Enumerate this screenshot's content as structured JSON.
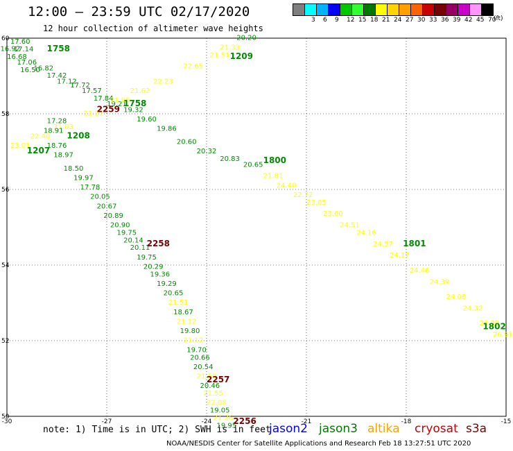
{
  "title": "12:00 – 23:59 UTC 02/17/2020",
  "subtitle": "12 hour collection of altimeter wave heights",
  "legend": {
    "unit": "(ft)",
    "bins": [
      {
        "label": "",
        "color": "#7f7f7f"
      },
      {
        "label": "3",
        "color": "#00ffff"
      },
      {
        "label": "6",
        "color": "#00b4ff"
      },
      {
        "label": "9",
        "color": "#0000ff"
      },
      {
        "label": "12",
        "color": "#00c800"
      },
      {
        "label": "15",
        "color": "#32ff32"
      },
      {
        "label": "18",
        "color": "#007800"
      },
      {
        "label": "21",
        "color": "#ffff00"
      },
      {
        "label": "24",
        "color": "#ffd400"
      },
      {
        "label": "27",
        "color": "#ffa000"
      },
      {
        "label": "30",
        "color": "#ff6400"
      },
      {
        "label": "33",
        "color": "#c80000"
      },
      {
        "label": "36",
        "color": "#780000"
      },
      {
        "label": "39",
        "color": "#960064"
      },
      {
        "label": "42",
        "color": "#c800c8"
      },
      {
        "label": "45",
        "color": "#ff96ff"
      },
      {
        "label": "70",
        "color": "#000000"
      }
    ]
  },
  "axes": {
    "lon_ticks": [
      "-30",
      "-27",
      "-24",
      "-21",
      "-18",
      "-15"
    ],
    "lat_ticks": [
      "50",
      "52",
      "54",
      "56",
      "58",
      "60"
    ]
  },
  "colors": {
    "jason2": "#0000ff",
    "jason3": "#007800",
    "altika": "#ffa000",
    "cryosat": "#c80000",
    "s3a": "#780000",
    "swh_green": "#008c00",
    "swh_yellow": "#ffff00"
  },
  "note": "note: 1) Time is in UTC; 2) SWH is in feet",
  "satellites": [
    "jason2",
    "jason3",
    "altika",
    "cryosat",
    "s3a"
  ],
  "credit": "NOAA/NESDIS Center for Satellite Applications and Research   Feb 18 13:27:51 UTC 2020",
  "tracks": [
    {
      "id": "pass-1758",
      "time": "1758",
      "time_pos": [
        -28.6,
        59.65
      ],
      "points": [
        {
          "lon": -29.6,
          "lat": 59.85,
          "v": "17.60"
        },
        {
          "lon": -29.9,
          "lat": 59.66,
          "v": "16.92"
        },
        {
          "lon": -29.5,
          "lat": 59.65,
          "v": "17.14"
        },
        {
          "lon": -29.7,
          "lat": 59.45,
          "v": "16.68"
        },
        {
          "lon": -29.4,
          "lat": 59.3,
          "v": "17.06"
        },
        {
          "lon": -29.3,
          "lat": 59.1,
          "v": "16.50"
        },
        {
          "lon": -28.9,
          "lat": 59.15,
          "v": "16.82"
        },
        {
          "lon": -28.5,
          "lat": 58.95,
          "v": "17.42"
        },
        {
          "lon": -28.2,
          "lat": 58.8,
          "v": "17.12"
        },
        {
          "lon": -27.8,
          "lat": 58.7,
          "v": "17.72"
        },
        {
          "lon": -27.45,
          "lat": 58.55,
          "v": "17.57"
        },
        {
          "lon": -27.1,
          "lat": 58.35,
          "v": "17.84"
        },
        {
          "lon": -26.7,
          "lat": 58.2,
          "v": "19.21"
        },
        {
          "lon": -26.2,
          "lat": 58.05,
          "v": "19.32"
        },
        {
          "lon": -25.8,
          "lat": 57.8,
          "v": "19.60"
        },
        {
          "lon": -25.2,
          "lat": 57.55,
          "v": "19.86"
        },
        {
          "lon": -24.6,
          "lat": 57.2,
          "v": "20.60"
        },
        {
          "lon": -24.0,
          "lat": 56.95,
          "v": "20.32"
        },
        {
          "lon": -23.3,
          "lat": 56.75,
          "v": "20.83"
        },
        {
          "lon": -22.6,
          "lat": 56.6,
          "v": "20.65"
        },
        {
          "lon": -22.0,
          "lat": 56.3,
          "v": "21.81"
        },
        {
          "lon": -21.6,
          "lat": 56.05,
          "v": "24.40"
        },
        {
          "lon": -21.1,
          "lat": 55.8,
          "v": "22.72"
        },
        {
          "lon": -20.7,
          "lat": 55.6,
          "v": "23.05"
        },
        {
          "lon": -20.2,
          "lat": 55.3,
          "v": "23.60"
        },
        {
          "lon": -19.7,
          "lat": 55.0,
          "v": "24.51"
        },
        {
          "lon": -19.2,
          "lat": 54.8,
          "v": "24.16"
        },
        {
          "lon": -18.7,
          "lat": 54.5,
          "v": "24.57"
        },
        {
          "lon": -18.2,
          "lat": 54.2,
          "v": "24.17"
        },
        {
          "lon": -17.6,
          "lat": 53.8,
          "v": "24.46"
        },
        {
          "lon": -17.0,
          "lat": 53.5,
          "v": "24.39"
        },
        {
          "lon": -16.5,
          "lat": 53.1,
          "v": "24.08"
        },
        {
          "lon": -16.0,
          "lat": 52.8,
          "v": "24.32"
        },
        {
          "lon": -15.5,
          "lat": 52.4,
          "v": "26.29"
        },
        {
          "lon": -15.1,
          "lat": 52.1,
          "v": "26.91"
        }
      ]
    },
    {
      "id": "pass-1209",
      "time": "1209",
      "time_pos": [
        -23.3,
        59.45
      ],
      "points": [
        {
          "lon": -22.8,
          "lat": 59.95,
          "v": "20.20"
        },
        {
          "lon": -23.3,
          "lat": 59.7,
          "v": "21.33"
        },
        {
          "lon": -23.6,
          "lat": 59.5,
          "v": "21.51"
        },
        {
          "lon": -24.4,
          "lat": 59.2,
          "v": "22.65"
        },
        {
          "lon": -25.3,
          "lat": 58.8,
          "v": "22.23"
        },
        {
          "lon": -26.0,
          "lat": 58.55,
          "v": "21.62"
        },
        {
          "lon": -26.6,
          "lat": 58.3,
          "v": "21.98"
        },
        {
          "lon": -27.4,
          "lat": 57.95,
          "v": "21.27"
        },
        {
          "lon": -28.3,
          "lat": 57.6,
          "v": "21.03"
        },
        {
          "lon": -29.0,
          "lat": 57.35,
          "v": "22.40"
        },
        {
          "lon": -29.6,
          "lat": 57.1,
          "v": "23.01"
        }
      ]
    },
    {
      "id": "pass-2259",
      "time": "2259",
      "time_pos": [
        -27.5,
        58.05
      ],
      "points": [
        {
          "lon": -28.5,
          "lat": 57.75,
          "v": "17.28"
        },
        {
          "lon": -28.6,
          "lat": 57.5,
          "v": "18.91"
        },
        {
          "lon": -28.5,
          "lat": 57.1,
          "v": "18.76"
        },
        {
          "lon": -28.3,
          "lat": 56.85,
          "v": "18.97"
        },
        {
          "lon": -28.0,
          "lat": 56.5,
          "v": "18.50"
        },
        {
          "lon": -27.7,
          "lat": 56.25,
          "v": "19.97"
        },
        {
          "lon": -27.5,
          "lat": 56.0,
          "v": "17.78"
        },
        {
          "lon": -27.2,
          "lat": 55.75,
          "v": "20.05"
        },
        {
          "lon": -27.0,
          "lat": 55.5,
          "v": "20.67"
        },
        {
          "lon": -26.8,
          "lat": 55.25,
          "v": "20.89"
        },
        {
          "lon": -26.6,
          "lat": 55.0,
          "v": "20.90"
        },
        {
          "lon": -26.4,
          "lat": 54.8,
          "v": "19.75"
        },
        {
          "lon": -26.2,
          "lat": 54.6,
          "v": "20.14"
        },
        {
          "lon": -26.0,
          "lat": 54.4,
          "v": "20.11"
        },
        {
          "lon": -25.8,
          "lat": 54.15,
          "v": "19.75"
        },
        {
          "lon": -25.6,
          "lat": 53.9,
          "v": "20.29"
        },
        {
          "lon": -25.4,
          "lat": 53.7,
          "v": "19.36"
        },
        {
          "lon": -25.2,
          "lat": 53.45,
          "v": "19.29"
        },
        {
          "lon": -25.0,
          "lat": 53.2,
          "v": "20.65"
        },
        {
          "lon": -24.85,
          "lat": 52.95,
          "v": "21.51"
        },
        {
          "lon": -24.7,
          "lat": 52.7,
          "v": "18.67"
        },
        {
          "lon": -24.6,
          "lat": 52.45,
          "v": "21.12"
        },
        {
          "lon": -24.5,
          "lat": 52.2,
          "v": "19.80"
        },
        {
          "lon": -24.4,
          "lat": 51.95,
          "v": "21.12"
        },
        {
          "lon": -24.3,
          "lat": 51.7,
          "v": "19.70"
        },
        {
          "lon": -24.2,
          "lat": 51.5,
          "v": "20.66"
        },
        {
          "lon": -24.1,
          "lat": 51.25,
          "v": "20.54"
        },
        {
          "lon": -24.0,
          "lat": 51.0,
          "v": "21.59"
        },
        {
          "lon": -23.9,
          "lat": 50.75,
          "v": "20.46"
        },
        {
          "lon": -23.8,
          "lat": 50.55,
          "v": "21.55"
        },
        {
          "lon": -23.7,
          "lat": 50.3,
          "v": "22.08"
        },
        {
          "lon": -23.6,
          "lat": 50.1,
          "v": "19.05"
        },
        {
          "lon": -23.5,
          "lat": 49.9,
          "v": "21.26"
        },
        {
          "lon": -23.4,
          "lat": 49.7,
          "v": "19.95"
        }
      ]
    }
  ],
  "time_labels": [
    {
      "text": "1758",
      "lon": -28.8,
      "lat": 59.65,
      "color": "#008c00"
    },
    {
      "text": "1758",
      "lon": -26.5,
      "lat": 58.2,
      "color": "#008c00"
    },
    {
      "text": "1209",
      "lon": -23.3,
      "lat": 59.45,
      "color": "#008c00"
    },
    {
      "text": "1208",
      "lon": -28.2,
      "lat": 57.35,
      "color": "#008c00"
    },
    {
      "text": "1207",
      "lon": -29.4,
      "lat": 56.95,
      "color": "#008c00"
    },
    {
      "text": "2259",
      "lon": -27.3,
      "lat": 58.05,
      "color": "#780000"
    },
    {
      "text": "2258",
      "lon": -25.8,
      "lat": 54.5,
      "color": "#780000"
    },
    {
      "text": "2257",
      "lon": -24.0,
      "lat": 50.9,
      "color": "#780000"
    },
    {
      "text": "2256",
      "lon": -23.2,
      "lat": 49.8,
      "color": "#780000"
    },
    {
      "text": "1800",
      "lon": -22.3,
      "lat": 56.7,
      "color": "#008c00"
    },
    {
      "text": "1801",
      "lon": -18.1,
      "lat": 54.5,
      "color": "#008c00"
    },
    {
      "text": "1802",
      "lon": -15.7,
      "lat": 52.3,
      "color": "#008c00"
    }
  ]
}
